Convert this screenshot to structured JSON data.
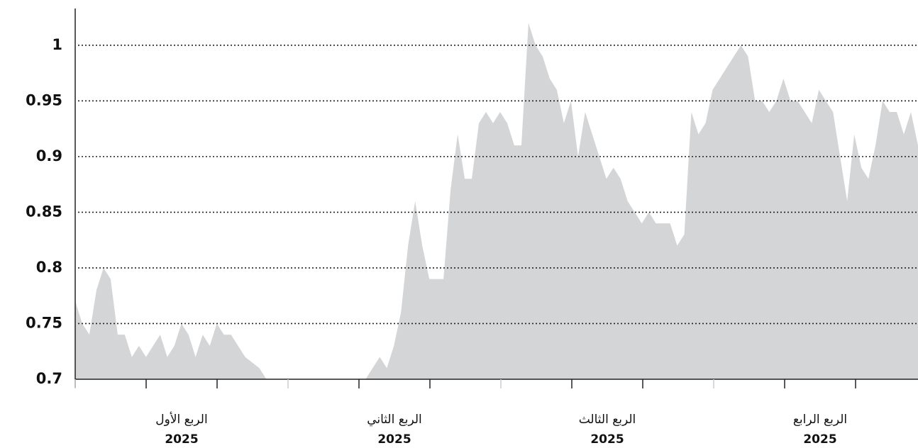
{
  "chart_data": {
    "type": "area",
    "color": "#d4d5d7",
    "ylim": [
      0.7,
      1.033
    ],
    "yticks": [
      0.7,
      0.75,
      0.8,
      0.85,
      0.9,
      0.95,
      1
    ],
    "grid": true,
    "x_labels": [
      {
        "quarter": "الربع الأول",
        "year": "2025"
      },
      {
        "quarter": "الربع الثاني",
        "year": "2025"
      },
      {
        "quarter": "الربع الثالث",
        "year": "2025"
      },
      {
        "quarter": "الربع الرابع",
        "year": "2025"
      }
    ],
    "values": [
      0.77,
      0.75,
      0.74,
      0.78,
      0.8,
      0.79,
      0.74,
      0.74,
      0.72,
      0.73,
      0.72,
      0.73,
      0.74,
      0.72,
      0.73,
      0.75,
      0.74,
      0.72,
      0.74,
      0.73,
      0.75,
      0.74,
      0.74,
      0.73,
      0.72,
      0.715,
      0.71,
      0.7,
      0.7,
      0.7,
      0.7,
      0.7,
      0.7,
      0.7,
      0.7,
      0.7,
      0.7,
      0.7,
      0.7,
      0.7,
      0.7,
      0.7,
      0.71,
      0.72,
      0.71,
      0.73,
      0.76,
      0.82,
      0.86,
      0.82,
      0.79,
      0.79,
      0.79,
      0.87,
      0.92,
      0.88,
      0.88,
      0.93,
      0.94,
      0.93,
      0.94,
      0.93,
      0.91,
      0.91,
      1.02,
      1.0,
      0.99,
      0.97,
      0.96,
      0.93,
      0.95,
      0.9,
      0.94,
      0.92,
      0.9,
      0.88,
      0.89,
      0.88,
      0.86,
      0.85,
      0.84,
      0.85,
      0.84,
      0.84,
      0.84,
      0.82,
      0.83,
      0.94,
      0.92,
      0.93,
      0.96,
      0.97,
      0.98,
      0.99,
      1.0,
      0.99,
      0.95,
      0.95,
      0.94,
      0.95,
      0.97,
      0.95,
      0.95,
      0.94,
      0.93,
      0.96,
      0.95,
      0.94,
      0.9,
      0.86,
      0.92,
      0.89,
      0.88,
      0.91,
      0.95,
      0.94,
      0.94,
      0.92,
      0.94,
      0.91
    ]
  }
}
